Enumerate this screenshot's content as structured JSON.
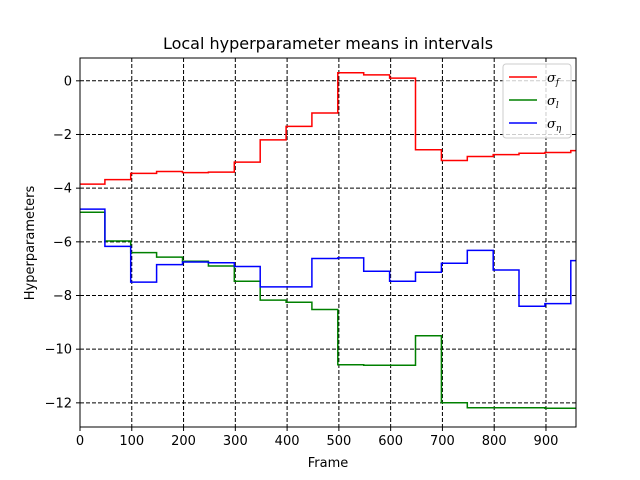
{
  "chart_data": {
    "type": "line",
    "title": "Local hyperparameter means in intervals",
    "xlabel": "Frame",
    "ylabel": "Hyperparameters",
    "xlim": [
      0,
      958
    ],
    "ylim": [
      -12.9,
      0.85
    ],
    "xticks": [
      0,
      100,
      200,
      300,
      400,
      500,
      600,
      700,
      800,
      900
    ],
    "yticks": [
      0,
      -2,
      -4,
      -6,
      -8,
      -10,
      -12
    ],
    "ytick_labels": [
      "0",
      "−2",
      "−4",
      "−6",
      "−8",
      "−10",
      "−12"
    ],
    "grid": true,
    "grid_style": "dashed",
    "legend_position": "top-right",
    "series": [
      {
        "name": "σ_f",
        "legend_base": "σ",
        "legend_sub": "f",
        "color": "#ff0000",
        "x": [
          0,
          48,
          48,
          98,
          98,
          148,
          148,
          198,
          198,
          248,
          248,
          298,
          298,
          348,
          348,
          398,
          398,
          448,
          448,
          498,
          498,
          548,
          548,
          598,
          598,
          648,
          648,
          698,
          698,
          748,
          748,
          798,
          798,
          848,
          848,
          898,
          898,
          948,
          948,
          958
        ],
        "y": [
          -3.85,
          -3.85,
          -3.68,
          -3.68,
          -3.45,
          -3.45,
          -3.38,
          -3.38,
          -3.42,
          -3.42,
          -3.4,
          -3.4,
          -3.03,
          -3.03,
          -2.2,
          -2.2,
          -1.7,
          -1.7,
          -1.2,
          -1.2,
          0.3,
          0.3,
          0.22,
          0.22,
          0.1,
          0.1,
          -2.57,
          -2.57,
          -2.97,
          -2.97,
          -2.82,
          -2.82,
          -2.75,
          -2.75,
          -2.7,
          -2.7,
          -2.67,
          -2.67,
          -2.6,
          -2.6
        ]
      },
      {
        "name": "σ_l",
        "legend_base": "σ",
        "legend_sub": "l",
        "color": "#008000",
        "x": [
          0,
          48,
          48,
          98,
          98,
          148,
          148,
          198,
          198,
          248,
          248,
          298,
          298,
          348,
          348,
          398,
          398,
          448,
          448,
          498,
          498,
          548,
          548,
          598,
          598,
          648,
          648,
          698,
          698,
          748,
          748,
          798,
          798,
          848,
          848,
          898,
          898,
          958
        ],
        "y": [
          -4.9,
          -4.9,
          -5.97,
          -5.97,
          -6.4,
          -6.4,
          -6.57,
          -6.57,
          -6.72,
          -6.72,
          -6.9,
          -6.9,
          -7.47,
          -7.47,
          -8.17,
          -8.17,
          -8.25,
          -8.25,
          -8.52,
          -8.52,
          -10.58,
          -10.58,
          -10.6,
          -10.6,
          -10.6,
          -10.6,
          -9.5,
          -9.5,
          -12.0,
          -12.0,
          -12.18,
          -12.18,
          -12.18,
          -12.18,
          -12.18,
          -12.18,
          -12.2,
          -12.2
        ]
      },
      {
        "name": "σ_η",
        "legend_base": "σ",
        "legend_sub": "η",
        "color": "#0000ff",
        "x": [
          0,
          48,
          48,
          98,
          98,
          148,
          148,
          198,
          198,
          248,
          248,
          298,
          298,
          348,
          348,
          398,
          398,
          448,
          448,
          498,
          498,
          548,
          548,
          598,
          598,
          648,
          648,
          698,
          698,
          748,
          748,
          798,
          798,
          848,
          848,
          898,
          898,
          948,
          948,
          958
        ],
        "y": [
          -4.78,
          -4.78,
          -6.17,
          -6.17,
          -7.5,
          -7.5,
          -6.85,
          -6.85,
          -6.75,
          -6.75,
          -6.78,
          -6.78,
          -6.92,
          -6.92,
          -7.68,
          -7.68,
          -7.68,
          -7.68,
          -6.62,
          -6.62,
          -6.6,
          -6.6,
          -7.1,
          -7.1,
          -7.47,
          -7.47,
          -7.13,
          -7.13,
          -6.8,
          -6.8,
          -6.32,
          -6.32,
          -7.05,
          -7.05,
          -8.4,
          -8.4,
          -8.3,
          -8.3,
          -6.7,
          -6.7
        ]
      }
    ]
  }
}
